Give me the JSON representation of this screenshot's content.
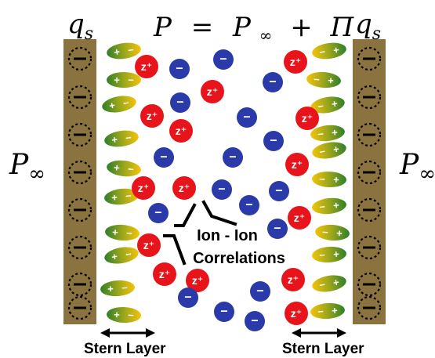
{
  "equation": {
    "lhs": "P",
    "eq": "=",
    "pinf": "P",
    "inf_sub": "∞",
    "plus": "+",
    "pi": "Π"
  },
  "left_charge": {
    "base": "q",
    "sub": "s"
  },
  "right_charge": {
    "base": "q",
    "sub": "s"
  },
  "left_pressure": {
    "base": "P",
    "sub": "∞"
  },
  "right_pressure": {
    "base": "P",
    "sub": "∞"
  },
  "correlation_label": {
    "line1": "Ion - Ion",
    "line2": "Correlations"
  },
  "stern_left": "Stern Layer",
  "stern_right": "Stern Layer",
  "cation_label": "z⁺",
  "anion_label": "−",
  "dipole_plus": "+",
  "dipole_minus": "−",
  "colors": {
    "wall": "#8b7340",
    "wall_border": "#6b5830",
    "cation": "#e8141c",
    "anion": "#2a3aa8",
    "dipole_green": "#3a8a2a",
    "dipole_yellow": "#f2c40a"
  }
}
